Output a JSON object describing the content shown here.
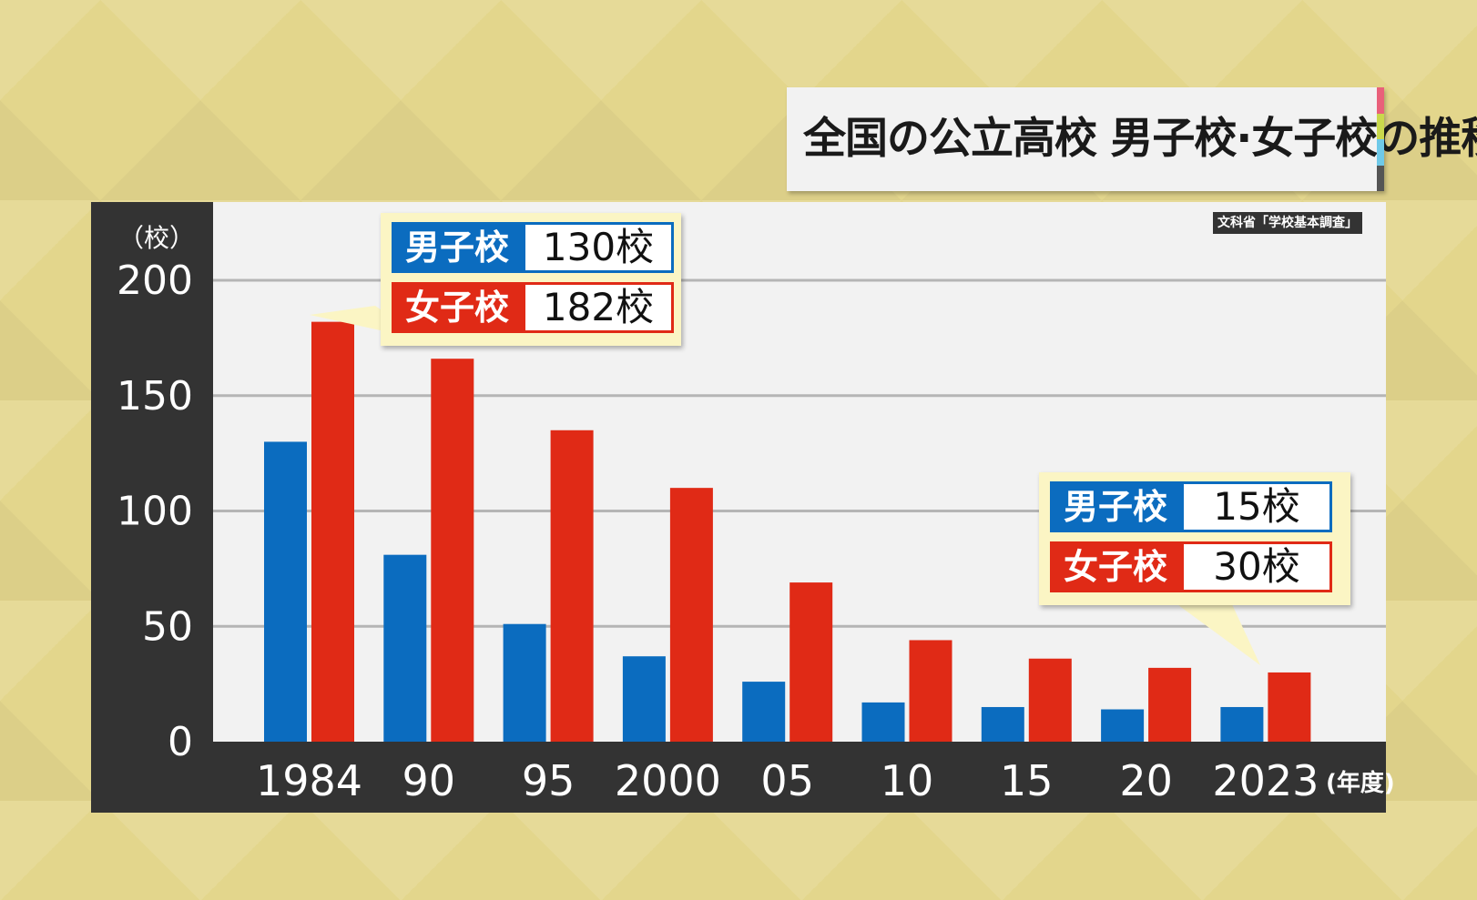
{
  "title": "全国の公立高校 男子校·女子校の推移",
  "title_stripe_colors": [
    "#e9607a",
    "#c9d84c",
    "#6fc9e8",
    "#555555"
  ],
  "source": "文科省「学校基本調査」",
  "y_unit": "（校）",
  "x_unit": "(年度)",
  "callouts": {
    "first": {
      "boys_label": "男子校",
      "boys_value": "130校",
      "girls_label": "女子校",
      "girls_value": "182校"
    },
    "last": {
      "boys_label": "男子校",
      "boys_value": "15校",
      "girls_label": "女子校",
      "girls_value": "30校"
    }
  },
  "chart_data": {
    "type": "bar",
    "categories": [
      "1984",
      "90",
      "95",
      "2000",
      "05",
      "10",
      "15",
      "20",
      "2023"
    ],
    "series": [
      {
        "name": "男子校",
        "color": "#0b6cbf",
        "values": [
          130,
          81,
          51,
          37,
          26,
          17,
          15,
          14,
          15
        ]
      },
      {
        "name": "女子校",
        "color": "#e02a16",
        "values": [
          182,
          166,
          135,
          110,
          69,
          44,
          36,
          32,
          30
        ]
      }
    ],
    "y_ticks": [
      "0",
      "50",
      "100",
      "150",
      "200"
    ],
    "ylim": [
      0,
      200
    ],
    "grid": true
  }
}
